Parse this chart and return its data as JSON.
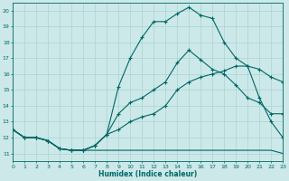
{
  "xlabel": "Humidex (Indice chaleur)",
  "xlim": [
    0,
    23
  ],
  "ylim": [
    10.5,
    20.5
  ],
  "xticks": [
    0,
    1,
    2,
    3,
    4,
    5,
    6,
    7,
    8,
    9,
    10,
    11,
    12,
    13,
    14,
    15,
    16,
    17,
    18,
    19,
    20,
    21,
    22,
    23
  ],
  "yticks": [
    11,
    12,
    13,
    14,
    15,
    16,
    17,
    18,
    19,
    20
  ],
  "background_color": "#cce8e8",
  "grid_color": "#aad4d4",
  "line_color": "#006666",
  "hours": [
    0,
    1,
    2,
    3,
    4,
    5,
    6,
    7,
    8,
    9,
    10,
    11,
    12,
    13,
    14,
    15,
    16,
    17,
    18,
    19,
    20,
    21,
    22,
    23
  ],
  "line_max": [
    12.5,
    12.0,
    12.0,
    11.8,
    11.3,
    11.2,
    11.2,
    11.5,
    12.2,
    15.2,
    17.0,
    18.3,
    19.3,
    19.3,
    19.8,
    20.2,
    19.7,
    19.5,
    18.0,
    17.0,
    16.5,
    14.5,
    13.0,
    12.0
  ],
  "line_mid_upper": [
    12.5,
    12.0,
    12.0,
    11.8,
    11.3,
    11.2,
    11.2,
    11.5,
    12.2,
    13.5,
    14.2,
    14.5,
    15.0,
    15.5,
    16.7,
    17.5,
    16.9,
    16.3,
    16.0,
    15.3,
    14.5,
    14.2,
    13.5,
    13.5
  ],
  "line_mid_lower": [
    12.5,
    12.0,
    12.0,
    11.8,
    11.3,
    11.2,
    11.2,
    11.5,
    12.2,
    12.5,
    13.0,
    13.3,
    13.5,
    14.0,
    15.0,
    15.5,
    15.8,
    16.0,
    16.2,
    16.5,
    16.5,
    16.3,
    15.8,
    15.5
  ],
  "line_min": [
    12.5,
    12.0,
    12.0,
    11.8,
    11.3,
    11.2,
    11.2,
    11.2,
    11.2,
    11.2,
    11.2,
    11.2,
    11.2,
    11.2,
    11.2,
    11.2,
    11.2,
    11.2,
    11.2,
    11.2,
    11.2,
    11.2,
    11.2,
    11.0
  ]
}
